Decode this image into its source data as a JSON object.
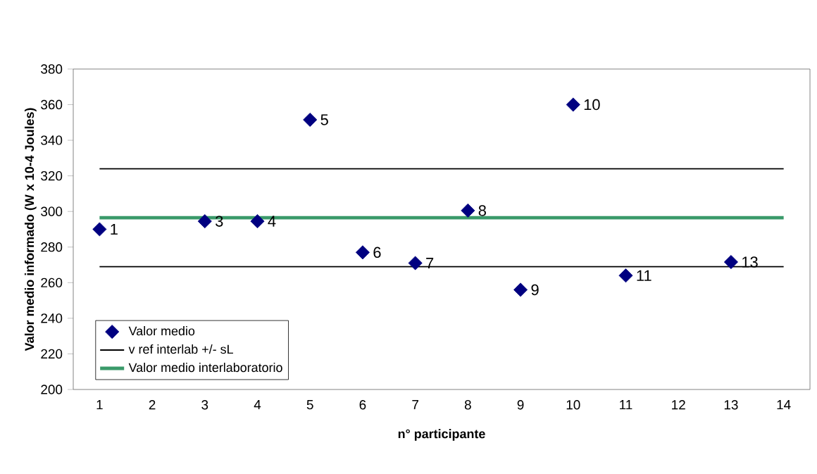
{
  "chart_data": {
    "type": "scatter",
    "xlabel": "n° participante",
    "ylabel": "Valor medio informado (W x 10-4 Joules)",
    "categories": [
      "1",
      "2",
      "3",
      "4",
      "5",
      "6",
      "7",
      "8",
      "9",
      "10",
      "11",
      "12",
      "13",
      "14"
    ],
    "ylim": [
      200,
      380
    ],
    "yticks": [
      200,
      220,
      240,
      260,
      280,
      300,
      320,
      340,
      360,
      380
    ],
    "grid": false,
    "legend": "bottom left",
    "annotations": [
      {
        "text": "1",
        "x": "1",
        "y": 290
      },
      {
        "text": "3",
        "x": "3",
        "y": 294.5
      },
      {
        "text": "4",
        "x": "4",
        "y": 294.5
      },
      {
        "text": "5",
        "x": "5",
        "y": 351.5
      },
      {
        "text": "6",
        "x": "6",
        "y": 277
      },
      {
        "text": "7",
        "x": "7",
        "y": 271
      },
      {
        "text": "8",
        "x": "8",
        "y": 300.5
      },
      {
        "text": "9",
        "x": "9",
        "y": 256
      },
      {
        "text": "10",
        "x": "10",
        "y": 360
      },
      {
        "text": "11",
        "x": "11",
        "y": 264
      },
      {
        "text": "13",
        "x": "13",
        "y": 271.6
      }
    ],
    "series": [
      {
        "name": "Valor medio",
        "marker": "diamond",
        "color": "#000080",
        "values": [
          290,
          null,
          294.5,
          294.5,
          351.5,
          277,
          271,
          300.5,
          256,
          360,
          264,
          null,
          271.6,
          null
        ]
      },
      {
        "name": "v ref interlab +/- sL",
        "type": "line",
        "color": "#000000",
        "values": [
          324,
          324,
          324,
          324,
          324,
          324,
          324,
          324,
          324,
          324,
          324,
          324,
          324,
          324
        ]
      },
      {
        "type": "line",
        "color": "#000000",
        "values": [
          269,
          269,
          269,
          269,
          269,
          269,
          269,
          269,
          269,
          269,
          269,
          269,
          269,
          269
        ]
      },
      {
        "name": "Valor medio interlaboratorio",
        "type": "line",
        "color": "#3a9a6a",
        "values": [
          296.5,
          296.5,
          296.5,
          296.5,
          296.5,
          296.5,
          296.5,
          296.5,
          296.5,
          296.5,
          296.5,
          296.5,
          296.5,
          296.5
        ]
      }
    ]
  }
}
